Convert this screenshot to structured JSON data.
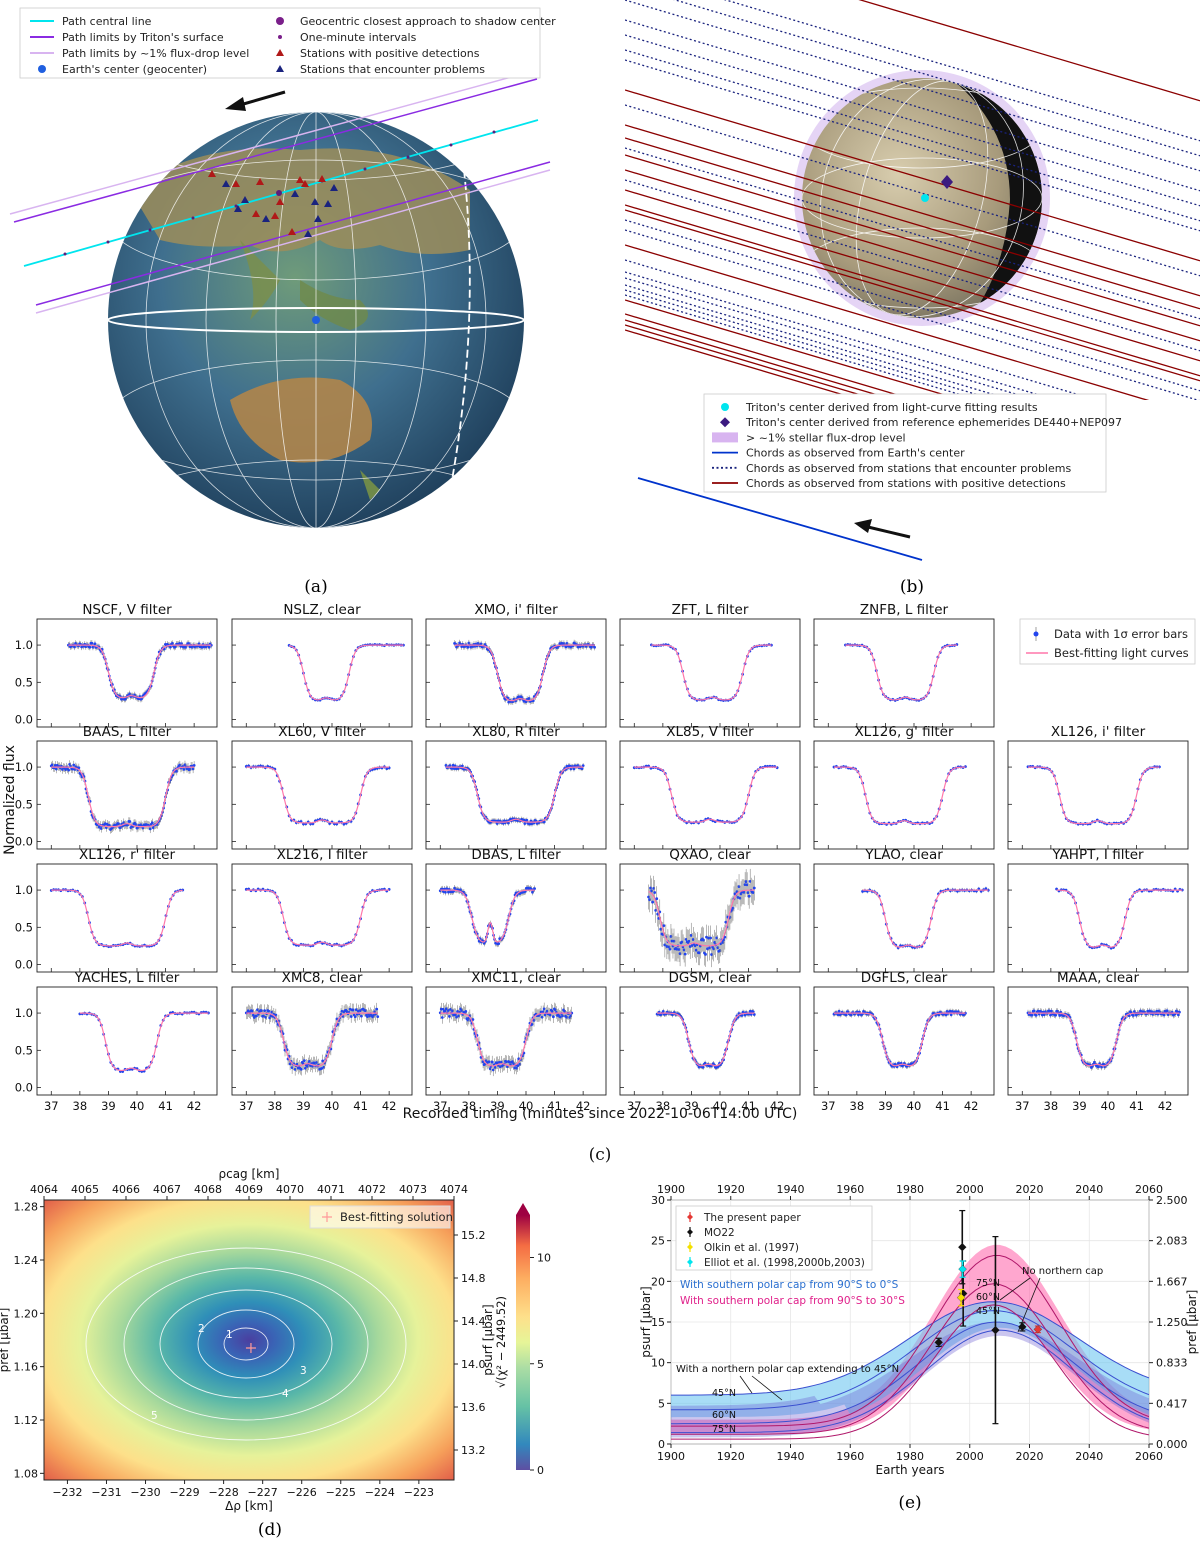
{
  "panel_labels": [
    "(a)",
    "(b)",
    "(c)",
    "(d)",
    "(e)"
  ],
  "colors": {
    "central": "#00e5ee",
    "surface": "#8a2be2",
    "fluxdrop": "#d8b4f0",
    "geocenter": "#1f5fe0",
    "positive": "#b01818",
    "problem": "#1a237e",
    "chord_red": "#8b0000",
    "chord_blue": "#0033cc",
    "pink": "#ff77aa",
    "datablue": "#2244ee"
  },
  "legend_a": [
    {
      "marker": "line",
      "color": "#00e5ee",
      "label": "Path central line"
    },
    {
      "marker": "line",
      "color": "#8a2be2",
      "label": "Path limits by Triton's surface"
    },
    {
      "marker": "line",
      "color": "#d8b4f0",
      "label": "Path limits by ~1% flux-drop level"
    },
    {
      "marker": "dot",
      "color": "#1f5fe0",
      "label": "Earth's center (geocenter)"
    },
    {
      "marker": "dot",
      "color": "#7a1f8a",
      "label": "Geocentric closest approach to shadow center"
    },
    {
      "marker": "smalldot",
      "color": "#7a1f8a",
      "label": "One-minute intervals"
    },
    {
      "marker": "tri",
      "color": "#b01818",
      "label": "Stations with positive detections"
    },
    {
      "marker": "tri",
      "color": "#1a237e",
      "label": "Stations that encounter problems"
    }
  ],
  "legend_b": [
    {
      "marker": "dot",
      "color": "#00e5ee",
      "label": "Triton's center derived from light-curve fitting results"
    },
    {
      "marker": "diamond",
      "color": "#3b1a80",
      "label": "Triton's center derived from reference ephemerides DE440+NEP097"
    },
    {
      "marker": "patch",
      "color": "#d8b4f0",
      "label": "> ~1% stellar flux-drop level"
    },
    {
      "marker": "line",
      "color": "#0033cc",
      "label": "Chords as observed from Earth's center"
    },
    {
      "marker": "dotted",
      "color": "#1a237e",
      "label": "Chords as observed from stations that encounter problems"
    },
    {
      "marker": "line",
      "color": "#8b0000",
      "label": "Chords as observed from stations with positive detections"
    }
  ],
  "chart_data": [
    {
      "panel": "c",
      "type": "line",
      "ylabel": "Normalized flux",
      "xlabel": "Recorded timing (minutes since 2022-10-06T14:00 UTC)",
      "xlim": [
        36.5,
        42.8
      ],
      "ylim": [
        -0.1,
        1.35
      ],
      "xticks": [
        37,
        38,
        39,
        40,
        41,
        42
      ],
      "yticks": [
        0.0,
        0.5,
        1.0
      ],
      "legend": [
        "Data with 1σ error bars",
        "Best-fitting light curves"
      ],
      "subplots": [
        {
          "title": "NSCF, V filter",
          "row": 0,
          "col": 0,
          "t_in": 39.0,
          "t_out": 40.6,
          "floor": 0.28,
          "x0": 37.6,
          "x1": 42.6,
          "noise": 0.03
        },
        {
          "title": "NSLZ, clear",
          "row": 0,
          "col": 1,
          "t_in": 39.0,
          "t_out": 40.6,
          "floor": 0.25,
          "x0": 38.5,
          "x1": 42.5,
          "noise": 0.008
        },
        {
          "title": "XMO, i' filter",
          "row": 0,
          "col": 2,
          "t_in": 39.0,
          "t_out": 40.6,
          "floor": 0.24,
          "x0": 37.5,
          "x1": 42.4,
          "noise": 0.03
        },
        {
          "title": "ZFT, L filter",
          "row": 0,
          "col": 3,
          "t_in": 38.7,
          "t_out": 40.8,
          "floor": 0.26,
          "x0": 37.6,
          "x1": 41.8,
          "noise": 0.01
        },
        {
          "title": "ZNFB, L filter",
          "row": 0,
          "col": 4,
          "t_in": 38.7,
          "t_out": 40.7,
          "floor": 0.26,
          "x0": 37.6,
          "x1": 41.5,
          "noise": 0.01
        },
        {
          "title": "BAAS, L filter",
          "row": 1,
          "col": 0,
          "t_in": 38.3,
          "t_out": 41.0,
          "floor": 0.2,
          "x0": 37.0,
          "x1": 42.0,
          "noise": 0.04
        },
        {
          "title": "XL60, V filter",
          "row": 1,
          "col": 1,
          "t_in": 38.3,
          "t_out": 41.0,
          "floor": 0.25,
          "x0": 37.0,
          "x1": 42.0,
          "noise": 0.02
        },
        {
          "title": "XL80, R filter",
          "row": 1,
          "col": 2,
          "t_in": 38.3,
          "t_out": 41.0,
          "floor": 0.26,
          "x0": 37.2,
          "x1": 42.0,
          "noise": 0.025
        },
        {
          "title": "XL85, V filter",
          "row": 1,
          "col": 3,
          "t_in": 38.3,
          "t_out": 41.0,
          "floor": 0.26,
          "x0": 37.0,
          "x1": 42.0,
          "noise": 0.015
        },
        {
          "title": "XL126, g' filter",
          "row": 1,
          "col": 4,
          "t_in": 38.3,
          "t_out": 41.0,
          "floor": 0.24,
          "x0": 37.2,
          "x1": 41.8,
          "noise": 0.01
        },
        {
          "title": "XL126, i' filter",
          "row": 1,
          "col": 5,
          "t_in": 38.3,
          "t_out": 41.0,
          "floor": 0.24,
          "x0": 37.2,
          "x1": 41.8,
          "noise": 0.01
        },
        {
          "title": "XL126, r' filter",
          "row": 2,
          "col": 0,
          "t_in": 38.3,
          "t_out": 41.0,
          "floor": 0.25,
          "x0": 37.0,
          "x1": 41.6,
          "noise": 0.01
        },
        {
          "title": "XL216, I filter",
          "row": 2,
          "col": 1,
          "t_in": 38.3,
          "t_out": 41.0,
          "floor": 0.26,
          "x0": 37.0,
          "x1": 42.0,
          "noise": 0.015
        },
        {
          "title": "DBAS, L filter",
          "row": 2,
          "col": 2,
          "t_in": 38.1,
          "t_out": 39.4,
          "floor": 0.28,
          "x0": 37.0,
          "x1": 40.3,
          "noise": 0.03
        },
        {
          "title": "QXAO, clear",
          "row": 2,
          "col": 3,
          "t_in": 37.9,
          "t_out": 40.3,
          "floor": 0.25,
          "x0": 37.5,
          "x1": 41.2,
          "noise": 0.12
        },
        {
          "title": "YLAO, clear",
          "row": 2,
          "col": 4,
          "t_in": 39.0,
          "t_out": 40.6,
          "floor": 0.22,
          "x0": 38.2,
          "x1": 42.6,
          "noise": 0.02
        },
        {
          "title": "YAHPT, I filter",
          "row": 2,
          "col": 5,
          "t_in": 39.0,
          "t_out": 40.6,
          "floor": 0.22,
          "x0": 38.2,
          "x1": 42.6,
          "noise": 0.015
        },
        {
          "title": "YACHES, L filter",
          "row": 3,
          "col": 0,
          "t_in": 38.9,
          "t_out": 40.7,
          "floor": 0.22,
          "x0": 38.0,
          "x1": 42.5,
          "noise": 0.015
        },
        {
          "title": "XMC8, clear",
          "row": 3,
          "col": 1,
          "t_in": 38.3,
          "t_out": 40.0,
          "floor": 0.28,
          "x0": 37.0,
          "x1": 41.6,
          "noise": 0.06
        },
        {
          "title": "XMC11, clear",
          "row": 3,
          "col": 2,
          "t_in": 38.3,
          "t_out": 40.0,
          "floor": 0.28,
          "x0": 37.0,
          "x1": 41.6,
          "noise": 0.06
        },
        {
          "title": "DGSM, clear",
          "row": 3,
          "col": 3,
          "t_in": 38.9,
          "t_out": 40.3,
          "floor": 0.27,
          "x0": 37.8,
          "x1": 41.2,
          "noise": 0.025
        },
        {
          "title": "DGFLS, clear",
          "row": 3,
          "col": 4,
          "t_in": 38.9,
          "t_out": 40.3,
          "floor": 0.27,
          "x0": 37.2,
          "x1": 41.8,
          "noise": 0.025
        },
        {
          "title": "MAAA, clear",
          "row": 3,
          "col": 5,
          "t_in": 38.9,
          "t_out": 40.3,
          "floor": 0.27,
          "x0": 37.2,
          "x1": 42.5,
          "noise": 0.03
        }
      ]
    },
    {
      "panel": "d",
      "type": "heatmap",
      "xlabel": "Δρ [km]",
      "xlabel_top": "ρcag [km]",
      "ylabel": "pref [μbar]",
      "ylabel_right": "psurf [μbar]",
      "colorbar_label": "√(χ² − 2449.52)",
      "xlim": [
        -232.6,
        -222.1
      ],
      "ylim": [
        1.075,
        1.285
      ],
      "xticks": [
        -232,
        -231,
        -230,
        -229,
        -228,
        -227,
        -226,
        -225,
        -224,
        -223
      ],
      "xticks_top": [
        4064,
        4065,
        4066,
        4067,
        4068,
        4069,
        4070,
        4071,
        4072,
        4073,
        4074
      ],
      "yticks": [
        1.08,
        1.12,
        1.16,
        1.2,
        1.24,
        1.28
      ],
      "yticks_right": [
        13.2,
        13.6,
        14.0,
        14.4,
        14.8,
        15.2
      ],
      "colorbar_ticks": [
        0,
        5,
        10
      ],
      "colorbar_range": [
        0,
        12
      ],
      "best_fit": {
        "x": -227.3,
        "y": 1.174
      },
      "contour_levels": [
        1,
        2,
        3,
        4,
        5
      ],
      "legend": "Best-fitting solution"
    },
    {
      "panel": "e",
      "type": "line",
      "xlabel": "Earth years",
      "ylabel": "psurf [μbar]",
      "ylabel_right": "pref [μbar]",
      "xlim": [
        1900,
        2060
      ],
      "ylim": [
        0,
        30
      ],
      "xticks": [
        1900,
        1920,
        1940,
        1960,
        1980,
        2000,
        2020,
        2040,
        2060
      ],
      "yticks": [
        0,
        5,
        10,
        15,
        20,
        25,
        30
      ],
      "yticks_right": [
        "0.000",
        "0.417",
        "0.833",
        "1.250",
        "1.667",
        "2.083",
        "2.500"
      ],
      "legend": [
        "The present paper",
        "MO22",
        "Olkin et al. (1997)",
        "Elliot et al. (1998,2000b,2003)"
      ],
      "band_labels": [
        "With southern polar cap from 90°S to 0°S",
        "With southern polar cap from 90°S to 30°S"
      ],
      "annotations": [
        "No northern cap",
        "With a northern polar cap extending to 45°N",
        "45°N",
        "60°N",
        "75°N",
        "75°N",
        "60°N",
        "45°N"
      ],
      "points": [
        {
          "name": "The present paper",
          "x": 2022.8,
          "y": 14.1,
          "yerr": 0.4,
          "color": "#e53935"
        },
        {
          "name": "MO22",
          "x": 1989.6,
          "y": 12.5,
          "yerr": 0.5,
          "color": "#111111"
        },
        {
          "name": "MO22",
          "x": 1997.5,
          "y": 24.2,
          "yerr": 4.5,
          "color": "#111111"
        },
        {
          "name": "MO22",
          "x": 1997.8,
          "y": 18.5,
          "yerr": 4.0,
          "color": "#111111"
        },
        {
          "name": "MO22",
          "x": 2008.6,
          "y": 14.0,
          "yerr": 11.5,
          "color": "#111111"
        },
        {
          "name": "MO22",
          "x": 2017.6,
          "y": 14.4,
          "yerr": 0.5,
          "color": "#111111"
        },
        {
          "name": "Olkin et al. (1997)",
          "x": 1997.1,
          "y": 18.0,
          "yerr": 1.0,
          "color": "#f4e000"
        },
        {
          "name": "Elliot et al. (1998,2000b,2003)",
          "x": 1997.6,
          "y": 21.5,
          "yerr": 1.0,
          "color": "#00e5ee"
        }
      ]
    }
  ]
}
